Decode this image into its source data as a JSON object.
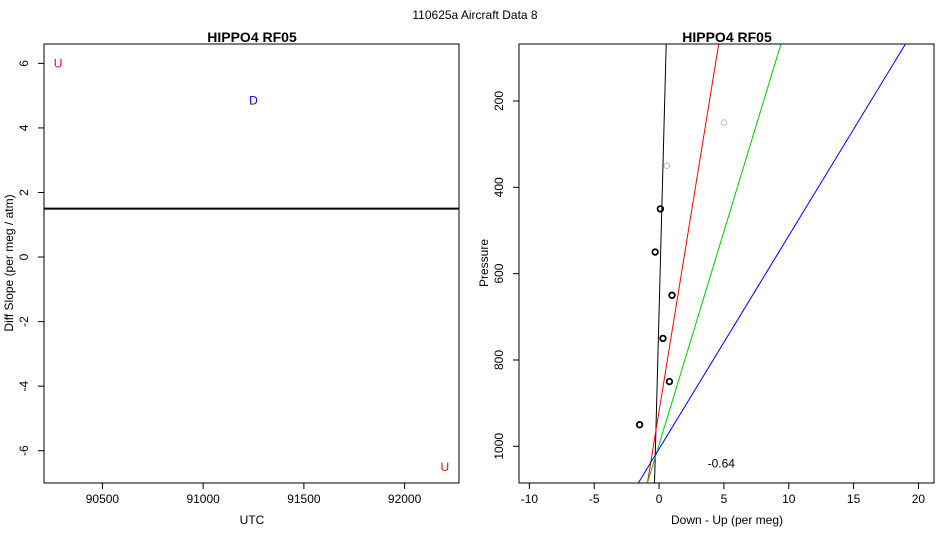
{
  "figure": {
    "supertitle": "110625a   Aircraft Data 8"
  },
  "chart_data": [
    {
      "type": "scatter",
      "title": "HIPPO4 RF05",
      "xlabel": "UTC",
      "ylabel": "Diff Slope (per meg / atm)",
      "xlim": [
        90210,
        92270
      ],
      "ylim": [
        -7,
        6.6
      ],
      "xticks": [
        90500,
        91000,
        91500,
        92000
      ],
      "yticks": [
        -6,
        -4,
        -2,
        0,
        2,
        4,
        6
      ],
      "grid": false,
      "hline": {
        "y": 1.5,
        "color": "#000000"
      },
      "points": [
        {
          "x": 90280,
          "y": 6.0,
          "label": "U",
          "color": "#ff0000"
        },
        {
          "x": 91250,
          "y": 4.85,
          "label": "D",
          "color": "#0000ff"
        },
        {
          "x": 92200,
          "y": -6.5,
          "label": "U",
          "color": "#ff0000"
        }
      ]
    },
    {
      "type": "scatter",
      "title": "HIPPO4 RF05",
      "xlabel": "Down - Up (per meg)",
      "ylabel": "Pressure",
      "xlim": [
        -10.8,
        21.2
      ],
      "ylim": [
        1085,
        68
      ],
      "y_reversed": true,
      "xticks": [
        -10,
        -5,
        0,
        5,
        10,
        15,
        20
      ],
      "yticks": [
        200,
        400,
        600,
        800,
        1000
      ],
      "grid": false,
      "annotation": {
        "text": "-0.64",
        "x": 4.8,
        "y": 1040
      },
      "points": [
        {
          "x": 5.0,
          "y": 250,
          "color": "#bbbbbb"
        },
        {
          "x": 0.6,
          "y": 350,
          "color": "#bbbbbb"
        },
        {
          "x": 0.1,
          "y": 450,
          "color": "#000000"
        },
        {
          "x": -0.3,
          "y": 550,
          "color": "#000000"
        },
        {
          "x": 1.0,
          "y": 650,
          "color": "#000000"
        },
        {
          "x": 0.3,
          "y": 750,
          "color": "#000000"
        },
        {
          "x": 0.8,
          "y": 850,
          "color": "#000000"
        },
        {
          "x": -1.5,
          "y": 950,
          "color": "#000000"
        }
      ],
      "lines": [
        {
          "color": "#000000",
          "x1": -0.35,
          "y1": 1085,
          "x2": 0.55,
          "y2": 68
        },
        {
          "color": "#ff0000",
          "x1": -0.9,
          "y1": 1085,
          "x2": 4.6,
          "y2": 68
        },
        {
          "color": "#00cc00",
          "x1": -0.9,
          "y1": 1085,
          "x2": 9.4,
          "y2": 68
        },
        {
          "color": "#0000ff",
          "x1": -1.6,
          "y1": 1085,
          "x2": 19.0,
          "y2": 68
        }
      ]
    }
  ]
}
